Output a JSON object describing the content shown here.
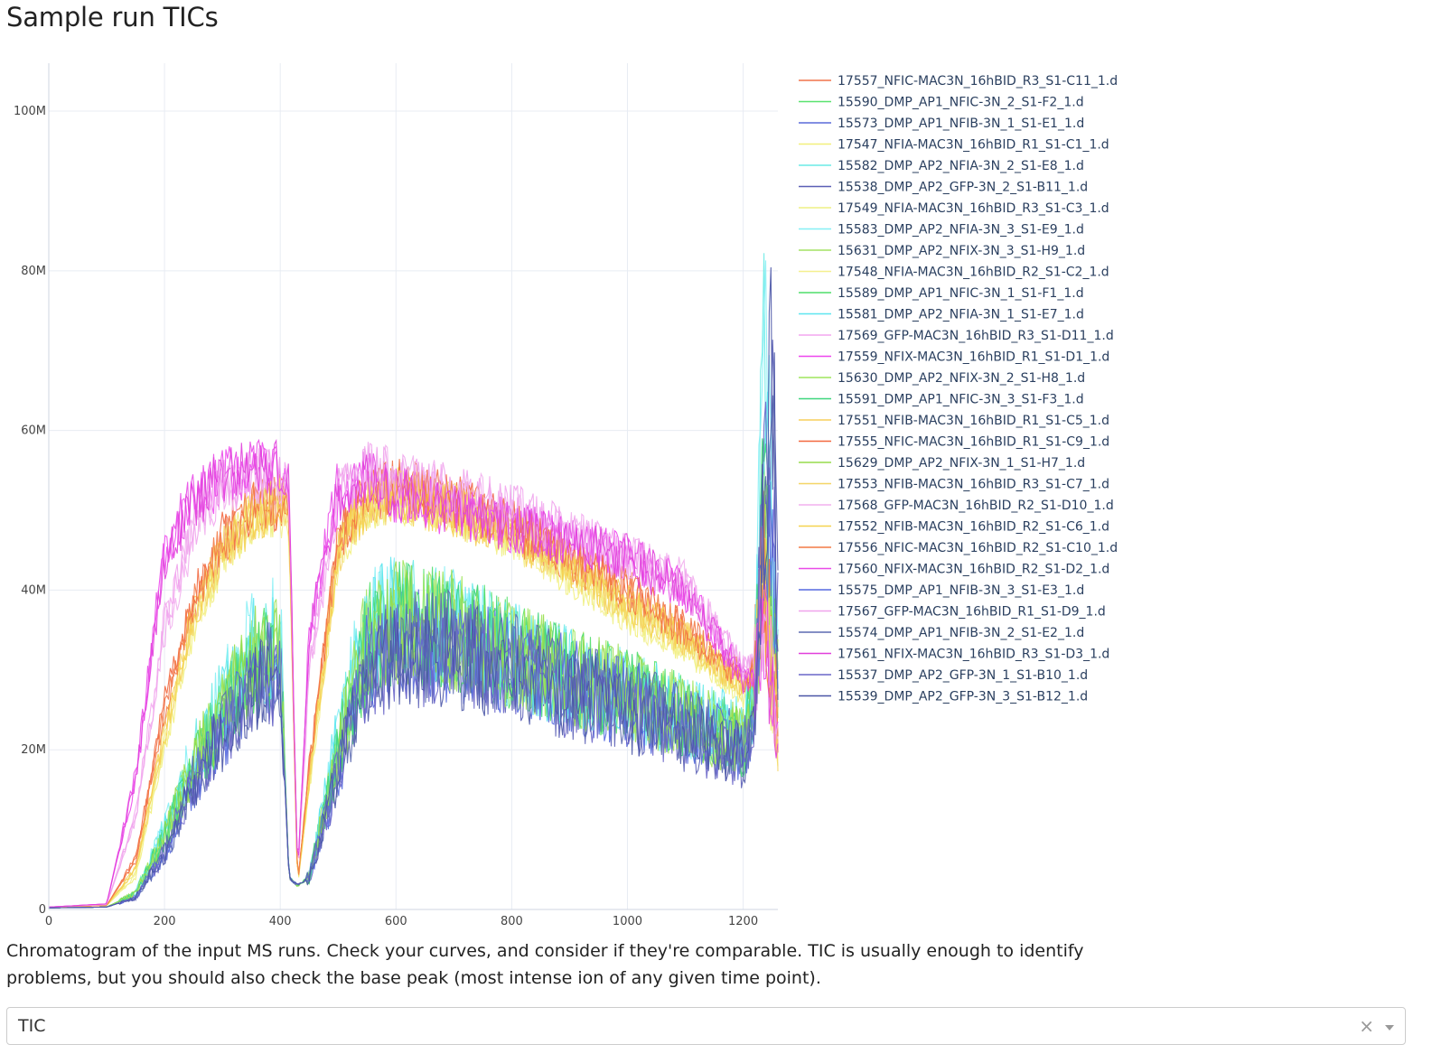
{
  "page": {
    "title": "Sample run TICs",
    "caption": "Chromatogram of the input MS runs. Check your curves, and consider if they're comparable. TIC is usually enough to identify problems, but you should also check the base peak (most intense ion of any given time point).",
    "selector": {
      "value": "TIC",
      "clear_icon": "×"
    }
  },
  "chart_data": {
    "type": "line",
    "title": "",
    "xlabel": "",
    "ylabel": "",
    "xlim": [
      0,
      1260
    ],
    "ylim": [
      0,
      100000000
    ],
    "x_ticks": [
      0,
      200,
      400,
      600,
      800,
      1000,
      1200
    ],
    "x_tick_labels": [
      "0",
      "200",
      "400",
      "600",
      "800",
      "1000",
      "1200"
    ],
    "y_ticks": [
      0,
      20000000,
      40000000,
      60000000,
      80000000,
      100000000
    ],
    "y_tick_labels": [
      "0",
      "20M",
      "40M",
      "60M",
      "80M",
      "100M"
    ],
    "grid": true,
    "legend_position": "right",
    "x": [
      0,
      100,
      150,
      200,
      250,
      300,
      350,
      400,
      415,
      430,
      450,
      500,
      550,
      600,
      700,
      800,
      900,
      1000,
      1100,
      1200,
      1220,
      1235,
      1250,
      1260
    ],
    "series": [
      {
        "name": "17557_NFIC-MAC3N_16hBID_R3_S1-C11_1.d",
        "color": "#f0734a",
        "group": "plateau",
        "values": [
          0.3,
          0.5,
          6,
          25,
          38,
          46,
          50,
          51,
          50,
          3,
          18,
          46,
          52,
          53,
          51,
          48,
          44,
          40,
          35,
          29,
          30,
          45,
          30,
          24
        ]
      },
      {
        "name": "15590_DMP_AP1_NFIC-3N_2_S1-F2_1.d",
        "color": "#59e36f",
        "group": "low",
        "values": [
          0.2,
          0.3,
          2,
          9,
          18,
          24,
          30,
          33,
          4,
          3,
          4,
          20,
          34,
          36,
          35,
          32,
          29,
          27,
          24,
          21,
          26,
          50,
          34,
          30
        ]
      },
      {
        "name": "15573_DMP_AP1_NFIB-3N_1_S1-E1_1.d",
        "color": "#5a6ad8",
        "group": "low",
        "values": [
          0.2,
          0.3,
          1.5,
          7,
          16,
          22,
          28,
          31,
          4,
          3,
          4,
          17,
          31,
          33,
          33,
          31,
          28,
          26,
          23,
          20,
          25,
          48,
          42,
          33
        ]
      },
      {
        "name": "17547_NFIA-MAC3N_16hBID_R1_S1-C1_1.d",
        "color": "#f2f07a",
        "group": "plateau",
        "values": [
          0.3,
          0.5,
          4,
          20,
          35,
          44,
          49,
          50,
          49,
          3,
          15,
          44,
          51,
          52,
          50,
          47,
          42,
          37,
          33,
          27,
          29,
          42,
          28,
          23
        ]
      },
      {
        "name": "15582_DMP_AP2_NFIA-3N_2_S1-E8_1.d",
        "color": "#6aeae6",
        "group": "low",
        "values": [
          0.2,
          0.3,
          2,
          10,
          19,
          26,
          32,
          34,
          4,
          3,
          4,
          22,
          34,
          37,
          35,
          32,
          29,
          27,
          24,
          22,
          28,
          72,
          40,
          30
        ]
      },
      {
        "name": "15538_DMP_AP2_GFP-3N_2_S1-B11_1.d",
        "color": "#5b5fb6",
        "group": "low",
        "values": [
          0.2,
          0.3,
          1.5,
          7,
          16,
          22,
          27,
          30,
          4,
          3,
          4,
          17,
          30,
          32,
          32,
          30,
          27,
          25,
          22,
          19,
          26,
          50,
          62,
          35
        ]
      },
      {
        "name": "17549_NFIA-MAC3N_16hBID_R3_S1-C3_1.d",
        "color": "#eef083",
        "group": "plateau",
        "values": [
          0.3,
          0.5,
          4.5,
          21,
          36,
          45,
          49,
          50,
          49,
          3,
          16,
          45,
          51,
          52,
          50,
          47,
          42,
          37,
          33,
          27,
          29,
          43,
          29,
          23
        ]
      },
      {
        "name": "15583_DMP_AP2_NFIA-3N_3_S1-E9_1.d",
        "color": "#86f0f5",
        "group": "low",
        "values": [
          0.2,
          0.3,
          2,
          10,
          20,
          27,
          33,
          35,
          4,
          3,
          4,
          23,
          35,
          37,
          35,
          32,
          29,
          27,
          24,
          22,
          30,
          82,
          45,
          30
        ]
      },
      {
        "name": "15631_DMP_AP2_NFIX-3N_3_S1-H9_1.d",
        "color": "#a3e263",
        "group": "low",
        "values": [
          0.2,
          0.3,
          2,
          9,
          18,
          25,
          31,
          33,
          4,
          3,
          4,
          20,
          34,
          36,
          35,
          32,
          29,
          27,
          24,
          21,
          26,
          49,
          33,
          29
        ]
      },
      {
        "name": "17548_NFIA-MAC3N_16hBID_R2_S1-C2_1.d",
        "color": "#f4f08e",
        "group": "plateau",
        "values": [
          0.3,
          0.5,
          4.2,
          21,
          35,
          44,
          49,
          50,
          49,
          3,
          15,
          44,
          51,
          52,
          50,
          47,
          42,
          37,
          33,
          27,
          29,
          42,
          28,
          23
        ]
      },
      {
        "name": "15589_DMP_AP1_NFIC-3N_1_S1-F1_1.d",
        "color": "#4fdd6a",
        "group": "low",
        "values": [
          0.2,
          0.3,
          2,
          9,
          18,
          24,
          30,
          32,
          4,
          3,
          4,
          20,
          33,
          36,
          35,
          32,
          29,
          27,
          24,
          21,
          26,
          51,
          35,
          30
        ]
      },
      {
        "name": "15581_DMP_AP2_NFIA-3N_1_S1-E7_1.d",
        "color": "#5de6f0",
        "group": "low",
        "values": [
          0.2,
          0.3,
          2,
          10,
          19,
          26,
          32,
          34,
          4,
          3,
          4,
          22,
          34,
          37,
          35,
          32,
          29,
          27,
          24,
          22,
          28,
          74,
          42,
          30
        ]
      },
      {
        "name": "17569_GFP-MAC3N_16hBID_R3_S1-D11_1.d",
        "color": "#f3a6ef",
        "group": "plateau",
        "values": [
          0.3,
          0.6,
          12,
          36,
          48,
          53,
          54,
          54,
          53,
          4,
          30,
          52,
          55,
          54,
          52,
          50,
          47,
          44,
          41,
          30,
          30,
          40,
          28,
          22
        ]
      },
      {
        "name": "17559_NFIX-MAC3N_16hBID_R1_S1-D1_1.d",
        "color": "#ee47ee",
        "group": "plateau",
        "values": [
          0.3,
          0.7,
          16,
          44,
          51,
          54,
          55,
          55,
          54,
          4,
          34,
          52,
          54,
          52,
          50,
          48,
          46,
          44,
          40,
          29,
          29,
          38,
          26,
          21
        ]
      },
      {
        "name": "15630_DMP_AP2_NFIX-3N_2_S1-H8_1.d",
        "color": "#9fe55b",
        "group": "low",
        "values": [
          0.2,
          0.3,
          2,
          9,
          18,
          25,
          31,
          33,
          4,
          3,
          4,
          20,
          34,
          36,
          35,
          32,
          29,
          27,
          24,
          21,
          26,
          48,
          33,
          29
        ]
      },
      {
        "name": "15591_DMP_AP1_NFIC-3N_3_S1-F3_1.d",
        "color": "#3fd67d",
        "group": "low",
        "values": [
          0.2,
          0.3,
          2,
          9,
          18,
          24,
          30,
          32,
          4,
          3,
          4,
          20,
          33,
          36,
          35,
          32,
          29,
          27,
          24,
          21,
          26,
          52,
          35,
          30
        ]
      },
      {
        "name": "17551_NFIB-MAC3N_16hBID_R1_S1-C5_1.d",
        "color": "#f7cf5b",
        "group": "plateau",
        "values": [
          0.3,
          0.5,
          5,
          22,
          37,
          45,
          49,
          51,
          50,
          3,
          16,
          45,
          51,
          52,
          50,
          47,
          43,
          38,
          34,
          28,
          29,
          44,
          29,
          23
        ]
      },
      {
        "name": "17555_NFIC-MAC3N_16hBID_R1_S1-C9_1.d",
        "color": "#f2683f",
        "group": "plateau",
        "values": [
          0.3,
          0.5,
          6.5,
          26,
          39,
          47,
          50,
          51,
          50,
          3,
          18,
          46,
          52,
          53,
          51,
          48,
          44,
          40,
          35,
          29,
          30,
          46,
          30,
          24
        ]
      },
      {
        "name": "15629_DMP_AP2_NFIX-3N_1_S1-H7_1.d",
        "color": "#96dc4c",
        "group": "low",
        "values": [
          0.2,
          0.3,
          2,
          9,
          18,
          25,
          31,
          33,
          4,
          3,
          4,
          20,
          34,
          36,
          35,
          32,
          29,
          27,
          24,
          21,
          26,
          47,
          33,
          29
        ]
      },
      {
        "name": "17553_NFIB-MAC3N_16hBID_R3_S1-C7_1.d",
        "color": "#f4d566",
        "group": "plateau",
        "values": [
          0.3,
          0.5,
          5.2,
          22,
          37,
          45,
          49,
          51,
          50,
          3,
          16,
          45,
          51,
          52,
          50,
          47,
          43,
          38,
          34,
          28,
          29,
          44,
          29,
          23
        ]
      },
      {
        "name": "17568_GFP-MAC3N_16hBID_R2_S1-D10_1.d",
        "color": "#f2b0ee",
        "group": "plateau",
        "values": [
          0.3,
          0.6,
          11,
          35,
          47,
          53,
          54,
          54,
          53,
          4,
          29,
          52,
          55,
          54,
          52,
          50,
          47,
          44,
          41,
          30,
          30,
          40,
          28,
          22
        ]
      },
      {
        "name": "17552_NFIB-MAC3N_16hBID_R2_S1-C6_1.d",
        "color": "#f5d24f",
        "group": "plateau",
        "values": [
          0.3,
          0.5,
          5,
          22,
          37,
          45,
          49,
          51,
          50,
          3,
          16,
          45,
          51,
          52,
          50,
          47,
          43,
          38,
          34,
          28,
          29,
          43,
          29,
          23
        ]
      },
      {
        "name": "17556_NFIC-MAC3N_16hBID_R2_S1-C10_1.d",
        "color": "#f47a45",
        "group": "plateau",
        "values": [
          0.3,
          0.5,
          6.2,
          25,
          38,
          46,
          50,
          51,
          50,
          3,
          18,
          46,
          52,
          53,
          51,
          48,
          44,
          40,
          35,
          29,
          30,
          45,
          30,
          24
        ]
      },
      {
        "name": "17560_NFIX-MAC3N_16hBID_R2_S1-D2_1.d",
        "color": "#e94be8",
        "group": "plateau",
        "values": [
          0.3,
          0.7,
          17,
          45,
          52,
          54,
          55,
          55,
          54,
          4,
          35,
          53,
          54,
          52,
          50,
          48,
          46,
          44,
          40,
          29,
          29,
          38,
          26,
          21
        ]
      },
      {
        "name": "15575_DMP_AP1_NFIB-3N_3_S1-E3_1.d",
        "color": "#5569e0",
        "group": "low",
        "values": [
          0.2,
          0.3,
          1.5,
          7,
          16,
          22,
          28,
          31,
          4,
          3,
          4,
          17,
          31,
          33,
          33,
          31,
          28,
          26,
          23,
          20,
          25,
          49,
          44,
          33
        ]
      },
      {
        "name": "17567_GFP-MAC3N_16hBID_R1_S1-D9_1.d",
        "color": "#f0a3ec",
        "group": "plateau",
        "values": [
          0.3,
          0.6,
          11.5,
          35,
          48,
          53,
          54,
          54,
          53,
          4,
          30,
          52,
          55,
          54,
          52,
          50,
          47,
          44,
          41,
          30,
          30,
          40,
          28,
          22
        ]
      },
      {
        "name": "15574_DMP_AP1_NFIB-3N_2_S1-E2_1.d",
        "color": "#5c6ab0",
        "group": "low",
        "values": [
          0.2,
          0.3,
          1.5,
          7,
          16,
          22,
          28,
          31,
          4,
          3,
          4,
          17,
          31,
          33,
          33,
          31,
          28,
          26,
          23,
          20,
          25,
          50,
          55,
          34
        ]
      },
      {
        "name": "17561_NFIX-MAC3N_16hBID_R3_S1-D3_1.d",
        "color": "#e13fdb",
        "group": "plateau",
        "values": [
          0.3,
          0.7,
          16.5,
          44,
          51,
          54,
          55,
          55,
          54,
          4,
          34,
          52,
          54,
          52,
          50,
          48,
          46,
          44,
          40,
          29,
          29,
          38,
          26,
          21
        ]
      },
      {
        "name": "15537_DMP_AP2_GFP-3N_1_S1-B10_1.d",
        "color": "#6a66c9",
        "group": "low",
        "values": [
          0.2,
          0.3,
          1.5,
          7,
          16,
          22,
          27,
          30,
          4,
          3,
          4,
          17,
          30,
          32,
          32,
          30,
          27,
          25,
          22,
          19,
          26,
          50,
          60,
          35
        ]
      },
      {
        "name": "15539_DMP_AP2_GFP-3N_3_S1-B12_1.d",
        "color": "#4a55a6",
        "group": "low",
        "values": [
          0.2,
          0.3,
          1.5,
          7,
          16,
          22,
          27,
          30,
          4,
          3,
          4,
          17,
          30,
          32,
          32,
          30,
          27,
          25,
          22,
          19,
          26,
          50,
          70,
          35
        ]
      }
    ]
  }
}
